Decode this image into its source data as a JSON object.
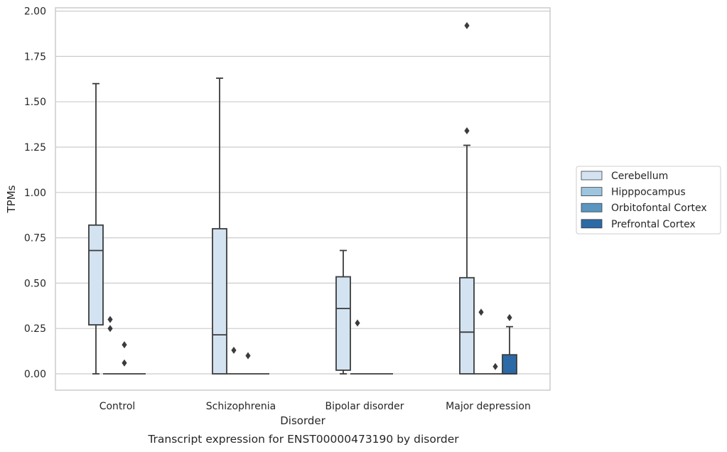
{
  "chart_data": {
    "type": "box",
    "caption": "Transcript expression for ENST00000473190 by disorder",
    "xlabel": "Disorder",
    "ylabel": "TPMs",
    "ylim": [
      -0.09,
      2.02
    ],
    "yticks": [
      0.0,
      0.25,
      0.5,
      0.75,
      1.0,
      1.25,
      1.5,
      1.75,
      2.0
    ],
    "ytick_labels": [
      "0.00",
      "0.25",
      "0.50",
      "0.75",
      "1.00",
      "1.25",
      "1.50",
      "1.75",
      "2.00"
    ],
    "grid": true,
    "legend_position": "right",
    "categories": [
      "Control",
      "Schizophrenia",
      "Bipolar disorder",
      "Major depression"
    ],
    "series": [
      {
        "name": "Cerebellum",
        "color": "#d3e3f1",
        "boxes": [
          {
            "q1": 0.27,
            "median": 0.68,
            "q3": 0.82,
            "whisker_low": 0.0,
            "whisker_high": 1.6,
            "outliers": []
          },
          {
            "q1": 0.0,
            "median": 0.215,
            "q3": 0.8,
            "whisker_low": 0.0,
            "whisker_high": 1.63,
            "outliers": []
          },
          {
            "q1": 0.02,
            "median": 0.36,
            "q3": 0.535,
            "whisker_low": 0.0,
            "whisker_high": 0.68,
            "outliers": []
          },
          {
            "q1": 0.0,
            "median": 0.23,
            "q3": 0.53,
            "whisker_low": 0.0,
            "whisker_high": 1.26,
            "outliers": [
              1.92,
              1.34
            ]
          }
        ]
      },
      {
        "name": "Hipppocampus",
        "color": "#9ec5de",
        "boxes": [
          {
            "q1": 0.0,
            "median": 0.0,
            "q3": 0.0,
            "whisker_low": 0.0,
            "whisker_high": 0.0,
            "outliers": [
              0.3,
              0.25
            ]
          },
          {
            "q1": 0.0,
            "median": 0.0,
            "q3": 0.0,
            "whisker_low": 0.0,
            "whisker_high": 0.0,
            "outliers": [
              0.13
            ]
          },
          {
            "q1": 0.0,
            "median": 0.0,
            "q3": 0.0,
            "whisker_low": 0.0,
            "whisker_high": 0.0,
            "outliers": [
              0.28
            ]
          },
          {
            "q1": 0.0,
            "median": 0.0,
            "q3": 0.0,
            "whisker_low": 0.0,
            "whisker_high": 0.0,
            "outliers": [
              0.34
            ]
          }
        ]
      },
      {
        "name": "Orbitofontal Cortex",
        "color": "#5a96c1",
        "boxes": [
          {
            "q1": 0.0,
            "median": 0.0,
            "q3": 0.0,
            "whisker_low": 0.0,
            "whisker_high": 0.0,
            "outliers": [
              0.16,
              0.06
            ]
          },
          {
            "q1": 0.0,
            "median": 0.0,
            "q3": 0.0,
            "whisker_low": 0.0,
            "whisker_high": 0.0,
            "outliers": [
              0.1
            ]
          },
          {
            "q1": 0.0,
            "median": 0.0,
            "q3": 0.0,
            "whisker_low": 0.0,
            "whisker_high": 0.0,
            "outliers": []
          },
          {
            "q1": 0.0,
            "median": 0.0,
            "q3": 0.0,
            "whisker_low": 0.0,
            "whisker_high": 0.0,
            "outliers": [
              0.04
            ]
          }
        ]
      },
      {
        "name": "Prefrontal Cortex",
        "color": "#2b6aa6",
        "boxes": [
          {
            "q1": 0.0,
            "median": 0.0,
            "q3": 0.0,
            "whisker_low": 0.0,
            "whisker_high": 0.0,
            "outliers": []
          },
          {
            "q1": 0.0,
            "median": 0.0,
            "q3": 0.0,
            "whisker_low": 0.0,
            "whisker_high": 0.0,
            "outliers": []
          },
          {
            "q1": 0.0,
            "median": 0.0,
            "q3": 0.0,
            "whisker_low": 0.0,
            "whisker_high": 0.0,
            "outliers": []
          },
          {
            "q1": 0.0,
            "median": 0.0,
            "q3": 0.105,
            "whisker_low": 0.0,
            "whisker_high": 0.26,
            "outliers": [
              0.31
            ]
          }
        ]
      }
    ]
  }
}
